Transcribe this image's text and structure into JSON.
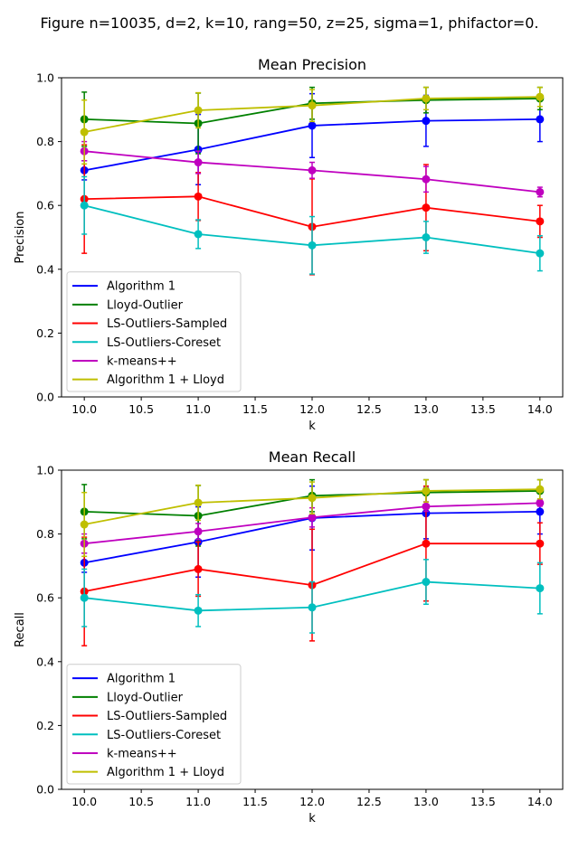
{
  "figure_title": "Figure n=10035, d=2, k=10, rang=50, z=25, sigma=1, phifactor=0.",
  "colors": {
    "Algorithm 1": "#0000ff",
    "Lloyd-Outlier": "#008000",
    "LS-Outliers-Sampled": "#ff0000",
    "LS-Outliers-Coreset": "#00bfbf",
    "k-means++": "#bf00bf",
    "Algorithm 1 + Lloyd": "#bfbf00"
  },
  "chart_data": [
    {
      "type": "line",
      "title": "Mean Precision",
      "xlabel": "k",
      "ylabel": "Precision",
      "xlim": [
        9.8,
        14.2
      ],
      "ylim": [
        0.0,
        1.0
      ],
      "xticks": [
        "10.0",
        "10.5",
        "11.0",
        "11.5",
        "12.0",
        "12.5",
        "13.0",
        "13.5",
        "14.0"
      ],
      "yticks": [
        "0.0",
        "0.2",
        "0.4",
        "0.6",
        "0.8",
        "1.0"
      ],
      "grid": false,
      "legend_position": "lower-left",
      "x": [
        10,
        11,
        12,
        13,
        14
      ],
      "series": [
        {
          "name": "Algorithm 1",
          "values": [
            0.71,
            0.775,
            0.85,
            0.865,
            0.87
          ],
          "err": [
            0.03,
            0.11,
            0.1,
            0.08,
            0.07
          ]
        },
        {
          "name": "Lloyd-Outlier",
          "values": [
            0.87,
            0.857,
            0.92,
            0.93,
            0.935
          ],
          "err": [
            0.085,
            0.095,
            0.05,
            0.04,
            0.035
          ]
        },
        {
          "name": "LS-Outliers-Sampled",
          "values": [
            0.62,
            0.628,
            0.533,
            0.593,
            0.55
          ],
          "err": [
            0.17,
            0.075,
            0.15,
            0.135,
            0.05
          ]
        },
        {
          "name": "LS-Outliers-Coreset",
          "values": [
            0.6,
            0.51,
            0.475,
            0.5,
            0.45
          ],
          "err": [
            0.09,
            0.045,
            0.09,
            0.05,
            0.055
          ]
        },
        {
          "name": "k-means++",
          "values": [
            0.77,
            0.735,
            0.71,
            0.682,
            0.642
          ],
          "err": [
            0.03,
            0.035,
            0.025,
            0.04,
            0.015
          ]
        },
        {
          "name": "Algorithm 1 + Lloyd",
          "values": [
            0.83,
            0.898,
            0.913,
            0.935,
            0.94
          ],
          "err": [
            0.1,
            0.055,
            0.05,
            0.035,
            0.03
          ]
        }
      ]
    },
    {
      "type": "line",
      "title": "Mean Recall",
      "xlabel": "k",
      "ylabel": "Recall",
      "xlim": [
        9.8,
        14.2
      ],
      "ylim": [
        0.0,
        1.0
      ],
      "xticks": [
        "10.0",
        "10.5",
        "11.0",
        "11.5",
        "12.0",
        "12.5",
        "13.0",
        "13.5",
        "14.0"
      ],
      "yticks": [
        "0.0",
        "0.2",
        "0.4",
        "0.6",
        "0.8",
        "1.0"
      ],
      "grid": false,
      "legend_position": "lower-left",
      "x": [
        10,
        11,
        12,
        13,
        14
      ],
      "series": [
        {
          "name": "Algorithm 1",
          "values": [
            0.71,
            0.775,
            0.85,
            0.865,
            0.87
          ],
          "err": [
            0.03,
            0.11,
            0.1,
            0.08,
            0.07
          ]
        },
        {
          "name": "Lloyd-Outlier",
          "values": [
            0.87,
            0.857,
            0.92,
            0.93,
            0.935
          ],
          "err": [
            0.085,
            0.095,
            0.05,
            0.04,
            0.035
          ]
        },
        {
          "name": "LS-Outliers-Sampled",
          "values": [
            0.62,
            0.69,
            0.64,
            0.77,
            0.77
          ],
          "err": [
            0.17,
            0.085,
            0.175,
            0.18,
            0.065
          ]
        },
        {
          "name": "LS-Outliers-Coreset",
          "values": [
            0.6,
            0.56,
            0.57,
            0.65,
            0.63
          ],
          "err": [
            0.09,
            0.05,
            0.08,
            0.07,
            0.08
          ]
        },
        {
          "name": "k-means++",
          "values": [
            0.77,
            0.808,
            0.852,
            0.886,
            0.897
          ],
          "err": [
            0.03,
            0.025,
            0.03,
            0.015,
            0.01
          ]
        },
        {
          "name": "Algorithm 1 + Lloyd",
          "values": [
            0.83,
            0.898,
            0.913,
            0.935,
            0.94
          ],
          "err": [
            0.1,
            0.055,
            0.05,
            0.035,
            0.03
          ]
        }
      ]
    }
  ]
}
